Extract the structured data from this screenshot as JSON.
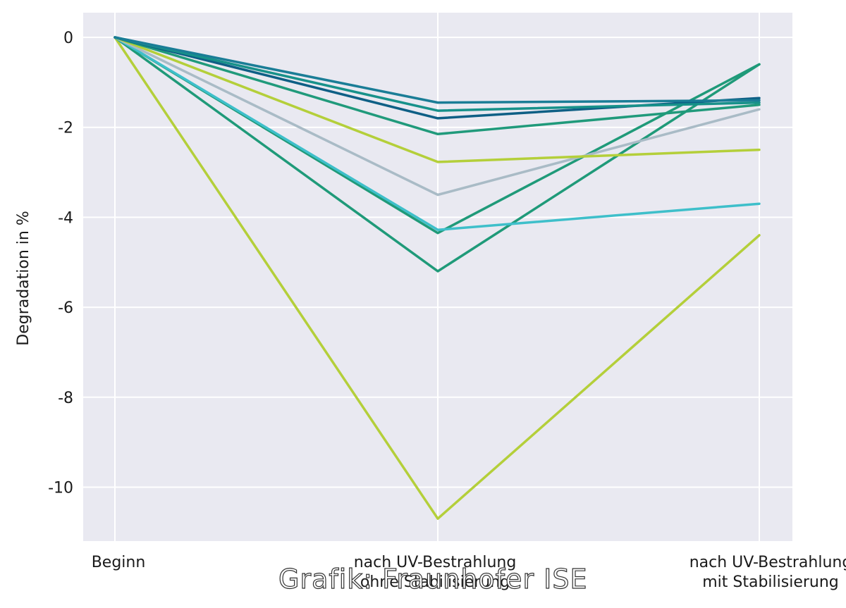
{
  "credit": "Grafik: Fraunhofer ISE",
  "chart_data": {
    "type": "line",
    "ylabel": "Degradation in %",
    "xlabel": "",
    "categories": [
      "Beginn",
      "nach UV-Bestrahlung ohne Stabilisierung",
      "nach UV-Bestrahlung mit Stabilisierung"
    ],
    "category_lines": [
      [
        "Beginn"
      ],
      [
        "nach UV-Bestrahlung",
        "ohne Stabilisierung"
      ],
      [
        "nach UV-Bestrahlung",
        "mit Stabilisierung"
      ]
    ],
    "ylim": [
      -11.2,
      0.5
    ],
    "yticks": [
      0,
      -2,
      -4,
      -6,
      -8,
      -10
    ],
    "grid": true,
    "colors": {
      "background": "#e9e9f1",
      "grid": "#ffffff"
    },
    "series": [
      {
        "color": "#b4cf3a",
        "values": [
          0,
          -10.7,
          -4.4
        ]
      },
      {
        "color": "#1f9a79",
        "values": [
          0,
          -5.2,
          -0.6
        ]
      },
      {
        "color": "#1f9a79",
        "values": [
          0,
          -4.35,
          -0.6
        ]
      },
      {
        "color": "#3ebfca",
        "values": [
          0,
          -4.28,
          -3.7
        ]
      },
      {
        "color": "#a9bbc6",
        "values": [
          0,
          -3.5,
          -1.6
        ]
      },
      {
        "color": "#b4cf3a",
        "values": [
          0,
          -2.77,
          -2.5
        ]
      },
      {
        "color": "#209a7b",
        "values": [
          0,
          -2.15,
          -1.5
        ]
      },
      {
        "color": "#0e5f85",
        "values": [
          0,
          -1.8,
          -1.35
        ]
      },
      {
        "color": "#17918a",
        "values": [
          0,
          -1.63,
          -1.45
        ]
      },
      {
        "color": "#1a7d96",
        "values": [
          0,
          -1.45,
          -1.4
        ]
      }
    ]
  }
}
